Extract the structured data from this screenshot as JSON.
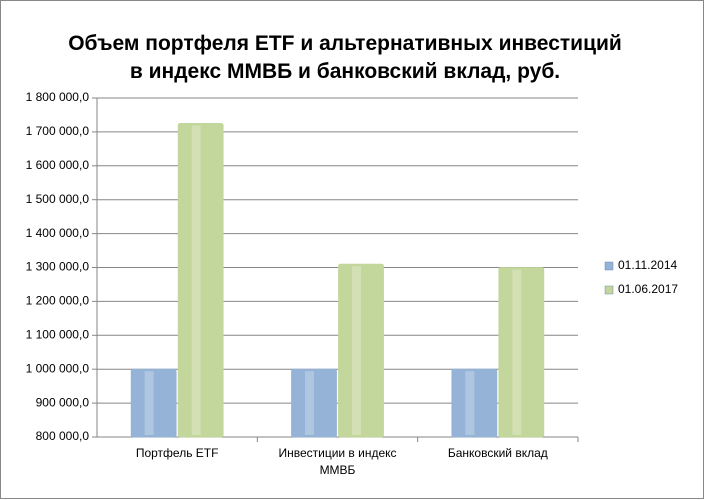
{
  "chart_data": {
    "type": "bar",
    "title": "Объем портфеля ETF и альтернативных инвестиций в индекс ММВБ и банковский вклад, руб.",
    "categories": [
      "Портфель ETF",
      "Инвестиции в индекс ММВБ",
      "Банковский вклад"
    ],
    "series": [
      {
        "name": "01.11.2014",
        "color": "#95b3d7",
        "values": [
          1000000,
          1000000,
          1000000
        ]
      },
      {
        "name": "01.06.2017",
        "color": "#c3d69b",
        "values": [
          1725000,
          1310000,
          1300000
        ]
      }
    ],
    "ylim": [
      800000,
      1800000
    ],
    "yticks": [
      {
        "value": 800000,
        "label": "800 000,0"
      },
      {
        "value": 900000,
        "label": "900 000,0"
      },
      {
        "value": 1000000,
        "label": "1 000 000,0"
      },
      {
        "value": 1100000,
        "label": "1 100 000,0"
      },
      {
        "value": 1200000,
        "label": "1 200 000,0"
      },
      {
        "value": 1300000,
        "label": "1 300 000,0"
      },
      {
        "value": 1400000,
        "label": "1 400 000,0"
      },
      {
        "value": 1500000,
        "label": "1 500 000,0"
      },
      {
        "value": 1600000,
        "label": "1 600 000,0"
      },
      {
        "value": 1700000,
        "label": "1 700 000,0"
      },
      {
        "value": 1800000,
        "label": "1 800 000,0"
      }
    ],
    "grid": true,
    "legend": "right"
  }
}
